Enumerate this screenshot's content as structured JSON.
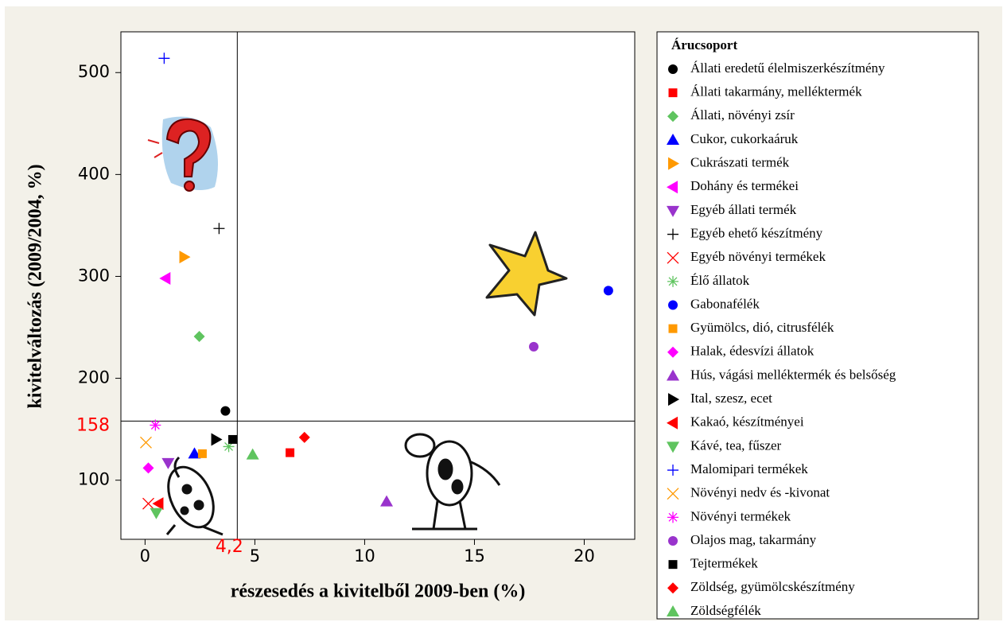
{
  "chart_data": {
    "type": "scatter",
    "xlabel": "részesedés a kivitelből 2009-ben (%)",
    "ylabel": "kivitelváltozás (2009/2004, %)",
    "xlim": [
      -1.1,
      22.3
    ],
    "ylim": [
      42,
      540
    ],
    "xticks": [
      0,
      5,
      10,
      15,
      20
    ],
    "yticks": [
      100,
      200,
      300,
      400,
      500
    ],
    "reference_lines": {
      "x": {
        "value": 4.2,
        "label": "4,2"
      },
      "y": 158,
      "color": "#ff0000"
    },
    "legend_title": "Árucsoport",
    "legend": "right",
    "series": [
      {
        "name": "Állati eredetű élelmiszerkészítmény",
        "color": "#000000",
        "marker": "circle",
        "x": [
          3.66
        ],
        "values": [
          168
        ]
      },
      {
        "name": "Állati takarmány, melléktermék",
        "color": "#ff0000",
        "marker": "square",
        "x": [
          6.6
        ],
        "values": [
          127
        ]
      },
      {
        "name": "Állati, növényi zsír",
        "color": "#5fc45f",
        "marker": "diamond",
        "x": [
          2.47
        ],
        "values": [
          241
        ]
      },
      {
        "name": "Cukor, cukorkaáruk",
        "color": "#0000ff",
        "marker": "triangle-up",
        "x": [
          2.25
        ],
        "values": [
          126
        ]
      },
      {
        "name": "Cukrászati termék",
        "color": "#ff9900",
        "marker": "triangle-right",
        "x": [
          1.78
        ],
        "values": [
          319
        ]
      },
      {
        "name": "Dohány és termékei",
        "color": "#ff00ff",
        "marker": "triangle-left",
        "x": [
          0.94
        ],
        "values": [
          298
        ]
      },
      {
        "name": "Egyéb állati termék",
        "color": "#9933cc",
        "marker": "triangle-down",
        "x": [
          1.05
        ],
        "values": [
          117
        ]
      },
      {
        "name": "Egyéb ehető készítmény",
        "color": "#000000",
        "marker": "plus",
        "x": [
          3.37
        ],
        "values": [
          347
        ]
      },
      {
        "name": "Egyéb növényi termékek",
        "color": "#ff0000",
        "marker": "x",
        "x": [
          0.15
        ],
        "values": [
          77
        ]
      },
      {
        "name": "Élő állatok",
        "color": "#5fc45f",
        "marker": "asterisk",
        "x": [
          3.81
        ],
        "values": [
          133
        ]
      },
      {
        "name": "Gabonafélék",
        "color": "#0000ff",
        "marker": "circle",
        "x": [
          21.1
        ],
        "values": [
          286
        ]
      },
      {
        "name": "Gyümölcs, dió, citrusfélék",
        "color": "#ff9900",
        "marker": "square",
        "x": [
          2.61
        ],
        "values": [
          126
        ]
      },
      {
        "name": "Halak, édesvízi állatok",
        "color": "#ff00ff",
        "marker": "diamond",
        "x": [
          0.15
        ],
        "values": [
          112
        ]
      },
      {
        "name": "Hús, vágási melléktermék és belsőség",
        "color": "#9933cc",
        "marker": "triangle-up",
        "x": [
          11.0
        ],
        "values": [
          79
        ]
      },
      {
        "name": "Ital, szesz, ecet",
        "color": "#000000",
        "marker": "triangle-right",
        "x": [
          3.23
        ],
        "values": [
          140
        ]
      },
      {
        "name": "Kakaó, készítményei",
        "color": "#ff0000",
        "marker": "triangle-left",
        "x": [
          0.62
        ],
        "values": [
          77
        ]
      },
      {
        "name": "Kávé, tea, fűszer",
        "color": "#5fc45f",
        "marker": "triangle-down",
        "x": [
          0.51
        ],
        "values": [
          68
        ]
      },
      {
        "name": "Malomipari termékek",
        "color": "#0000ff",
        "marker": "plus",
        "x": [
          0.87
        ],
        "values": [
          514
        ]
      },
      {
        "name": "Növényi nedv és -kivonat",
        "color": "#ff9900",
        "marker": "x",
        "x": [
          0.04
        ],
        "values": [
          137
        ]
      },
      {
        "name": "Növényi termékek",
        "color": "#ff00ff",
        "marker": "asterisk",
        "x": [
          0.47
        ],
        "values": [
          154
        ]
      },
      {
        "name": "Olajos mag, takarmány",
        "color": "#9933cc",
        "marker": "circle",
        "x": [
          17.7
        ],
        "values": [
          231
        ]
      },
      {
        "name": "Tejtermékek",
        "color": "#000000",
        "marker": "square",
        "x": [
          3.99
        ],
        "values": [
          140
        ]
      },
      {
        "name": "Zöldség, gyümölcskészítmény",
        "color": "#ff0000",
        "marker": "diamond",
        "x": [
          7.26
        ],
        "values": [
          142
        ]
      },
      {
        "name": "Zöldségfélék",
        "color": "#5fc45f",
        "marker": "triangle-up",
        "x": [
          4.9
        ],
        "values": [
          125
        ]
      }
    ]
  }
}
